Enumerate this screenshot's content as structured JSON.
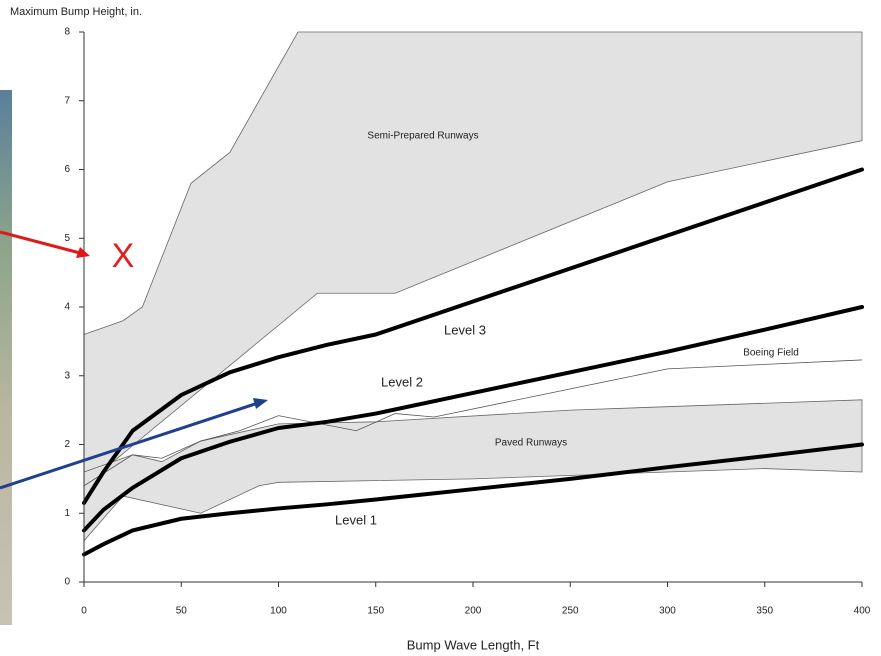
{
  "chart_data": {
    "type": "line",
    "title": "Maximum Bump Height, in.",
    "x_label": "Bump Wave Length, Ft",
    "xlim": [
      0,
      400
    ],
    "xticks": [
      0,
      50,
      100,
      150,
      200,
      250,
      300,
      350,
      400
    ],
    "ylim": [
      0,
      8
    ],
    "yticks": [
      0,
      1,
      2,
      3,
      4,
      5,
      6,
      7,
      8
    ],
    "regions": [
      {
        "name": "Semi-Prepared Runways",
        "color": "#e2e2e2",
        "x": [
          0,
          20,
          30,
          55,
          75,
          110,
          400,
          400,
          300,
          160,
          120,
          0
        ],
        "values": [
          3.6,
          3.8,
          4.0,
          5.8,
          6.25,
          8,
          8,
          6.42,
          5.82,
          4.2,
          4.2,
          1.4
        ]
      },
      {
        "name": "Paved Runways",
        "color": "#e2e2e2",
        "x": [
          0,
          25,
          40,
          60,
          100,
          150,
          250,
          400,
          400,
          350,
          300,
          200,
          100,
          90,
          60,
          20,
          0
        ],
        "values": [
          1.6,
          1.85,
          1.75,
          2.05,
          2.3,
          2.33,
          2.5,
          2.65,
          1.6,
          1.65,
          1.6,
          1.5,
          1.45,
          1.4,
          1.0,
          1.25,
          0.6
        ]
      }
    ],
    "thin_lines": [
      {
        "name": "Boeing Field",
        "color": "#555555",
        "x": [
          0,
          25,
          40,
          60,
          80,
          100,
          140,
          160,
          180,
          300,
          400
        ],
        "values": [
          1.4,
          1.85,
          1.8,
          2.05,
          2.2,
          2.42,
          2.2,
          2.45,
          2.4,
          3.1,
          3.23
        ]
      }
    ],
    "series": [
      {
        "name": "Level 3",
        "color": "#000000",
        "x": [
          0,
          10,
          25,
          50,
          75,
          100,
          125,
          150,
          200,
          250,
          300,
          350,
          400
        ],
        "values": [
          1.15,
          1.6,
          2.2,
          2.72,
          3.05,
          3.27,
          3.45,
          3.6,
          4.08,
          4.56,
          5.04,
          5.52,
          6.0
        ]
      },
      {
        "name": "Level 2",
        "color": "#000000",
        "x": [
          0,
          10,
          25,
          50,
          75,
          100,
          125,
          150,
          200,
          250,
          300,
          350,
          400
        ],
        "values": [
          0.75,
          1.05,
          1.37,
          1.8,
          2.04,
          2.24,
          2.33,
          2.45,
          2.75,
          3.05,
          3.35,
          3.67,
          4.0
        ]
      },
      {
        "name": "Level 1",
        "color": "#000000",
        "x": [
          0,
          10,
          25,
          50,
          75,
          100,
          125,
          150,
          200,
          250,
          300,
          350,
          400
        ],
        "values": [
          0.4,
          0.55,
          0.75,
          0.92,
          1.0,
          1.07,
          1.13,
          1.2,
          1.35,
          1.5,
          1.67,
          1.83,
          2.0
        ]
      }
    ],
    "annotations": [
      {
        "text": "X",
        "color": "#e02020"
      }
    ]
  }
}
